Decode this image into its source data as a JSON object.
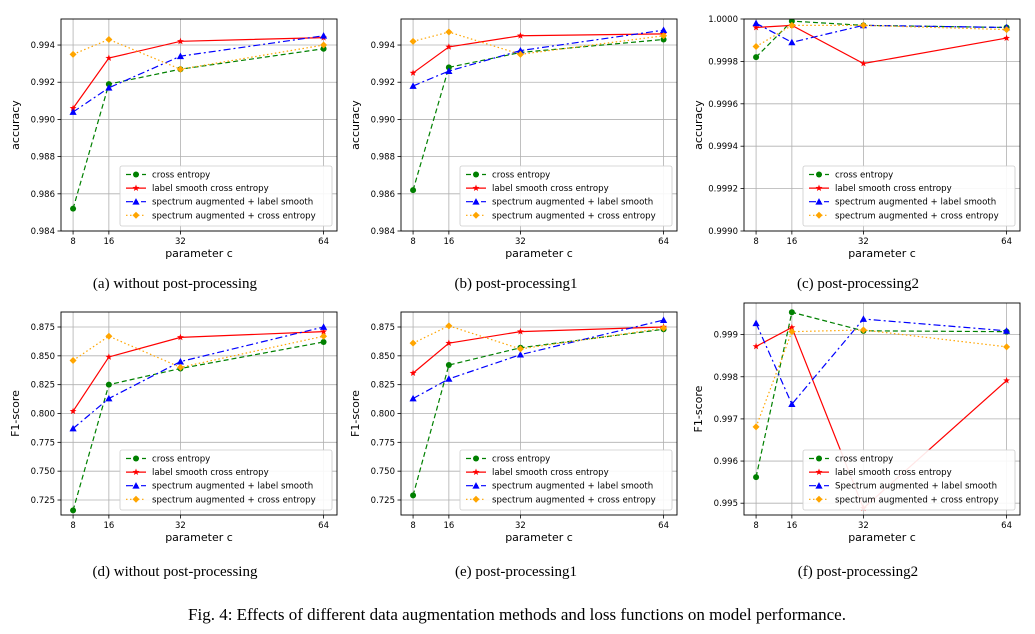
{
  "styles": {
    "cross entropy": {
      "color": "#008000",
      "dash": "5,3",
      "marker": "circle"
    },
    "label smooth cross entropy": {
      "color": "#ff0000",
      "dash": "",
      "marker": "star"
    },
    "spectrum augmented + label smooth": {
      "color": "#0000ff",
      "dash": "7,3,2,3",
      "marker": "triangle"
    },
    "Spectrum augmented + label smooth": {
      "color": "#0000ff",
      "dash": "7,3,2,3",
      "marker": "triangle"
    },
    "spectrum augmented + cross entropy": {
      "color": "#ffa500",
      "dash": "1.5,2.5",
      "marker": "diamond"
    }
  },
  "chart_data": [
    {
      "type": "line",
      "caption": "(a) without post-processing",
      "xlabel": "parameter c",
      "ylabel": "accuracy",
      "x": [
        8,
        16,
        32,
        64
      ],
      "xlim": [
        5.3,
        67
      ],
      "ylim": [
        0.984,
        0.9954
      ],
      "yticks": [
        "0.984",
        "0.986",
        "0.988",
        "0.990",
        "0.992",
        "0.994"
      ],
      "legend": "lower-right",
      "grid": true,
      "series": [
        {
          "name": "cross entropy",
          "values": [
            0.9852,
            0.9919,
            0.9927,
            0.9938
          ]
        },
        {
          "name": "label smooth cross entropy",
          "values": [
            0.9906,
            0.9933,
            0.9942,
            0.9944
          ]
        },
        {
          "name": "spectrum augmented + label smooth",
          "values": [
            0.9904,
            0.9917,
            0.9934,
            0.9945
          ]
        },
        {
          "name": "spectrum augmented + cross entropy",
          "values": [
            0.9935,
            0.9943,
            0.9927,
            0.994
          ]
        }
      ]
    },
    {
      "type": "line",
      "caption": "(b) post-processing1",
      "xlabel": "parameter c",
      "ylabel": "accuracy",
      "x": [
        8,
        16,
        32,
        64
      ],
      "xlim": [
        5.3,
        67
      ],
      "ylim": [
        0.984,
        0.9954
      ],
      "yticks": [
        "0.984",
        "0.986",
        "0.988",
        "0.990",
        "0.992",
        "0.994"
      ],
      "legend": "lower-right",
      "grid": true,
      "series": [
        {
          "name": "cross entropy",
          "values": [
            0.9862,
            0.9928,
            0.9936,
            0.9943
          ]
        },
        {
          "name": "label smooth cross entropy",
          "values": [
            0.9925,
            0.9939,
            0.9945,
            0.9946
          ]
        },
        {
          "name": "spectrum augmented + label smooth",
          "values": [
            0.9918,
            0.9926,
            0.9937,
            0.9948
          ]
        },
        {
          "name": "spectrum augmented + cross entropy",
          "values": [
            0.9942,
            0.9947,
            0.9935,
            0.9945
          ]
        }
      ]
    },
    {
      "type": "line",
      "caption": "(c) post-processing2",
      "xlabel": "parameter c",
      "ylabel": "accuracy",
      "x": [
        8,
        16,
        32,
        64
      ],
      "xlim": [
        5.3,
        67
      ],
      "ylim": [
        0.999,
        1.0
      ],
      "yticks": [
        "0.9990",
        "0.9992",
        "0.9994",
        "0.9996",
        "0.9998",
        "1.0000"
      ],
      "legend": "lower-right",
      "grid": true,
      "series": [
        {
          "name": "cross entropy",
          "values": [
            0.99982,
            0.99999,
            0.99997,
            0.99996
          ]
        },
        {
          "name": "label smooth cross entropy",
          "values": [
            0.99996,
            0.99997,
            0.99979,
            0.99991
          ]
        },
        {
          "name": "spectrum augmented + label smooth",
          "values": [
            0.99998,
            0.99989,
            0.99997,
            0.99996
          ]
        },
        {
          "name": "spectrum augmented + cross entropy",
          "values": [
            0.99987,
            0.99997,
            0.99997,
            0.99995
          ]
        }
      ]
    },
    {
      "type": "line",
      "caption": "(d) without post-processing",
      "xlabel": "parameter c",
      "ylabel": "F1-score",
      "x": [
        8,
        16,
        32,
        64
      ],
      "xlim": [
        5.3,
        67
      ],
      "ylim": [
        0.712,
        0.888
      ],
      "yticks": [
        "0.725",
        "0.750",
        "0.775",
        "0.800",
        "0.825",
        "0.850",
        "0.875"
      ],
      "legend": "lower-right",
      "grid": true,
      "series": [
        {
          "name": "cross entropy",
          "values": [
            0.716,
            0.825,
            0.839,
            0.862
          ]
        },
        {
          "name": "label smooth cross entropy",
          "values": [
            0.802,
            0.849,
            0.866,
            0.871
          ]
        },
        {
          "name": "spectrum augmented + label smooth",
          "values": [
            0.787,
            0.813,
            0.845,
            0.875
          ]
        },
        {
          "name": "spectrum augmented + cross entropy",
          "values": [
            0.846,
            0.867,
            0.84,
            0.867
          ]
        }
      ]
    },
    {
      "type": "line",
      "caption": "(e) post-processing1",
      "xlabel": "parameter c",
      "ylabel": "F1-score",
      "x": [
        8,
        16,
        32,
        64
      ],
      "xlim": [
        5.3,
        67
      ],
      "ylim": [
        0.712,
        0.888
      ],
      "yticks": [
        "0.725",
        "0.750",
        "0.775",
        "0.800",
        "0.825",
        "0.850",
        "0.875"
      ],
      "legend": "lower-right",
      "grid": true,
      "series": [
        {
          "name": "cross entropy",
          "values": [
            0.729,
            0.842,
            0.857,
            0.873
          ]
        },
        {
          "name": "label smooth cross entropy",
          "values": [
            0.835,
            0.861,
            0.871,
            0.875
          ]
        },
        {
          "name": "spectrum augmented + label smooth",
          "values": [
            0.813,
            0.83,
            0.851,
            0.881
          ]
        },
        {
          "name": "spectrum augmented + cross entropy",
          "values": [
            0.861,
            0.876,
            0.856,
            0.874
          ]
        }
      ]
    },
    {
      "type": "line",
      "caption": "(f) post-processing2",
      "xlabel": "parameter c",
      "ylabel": "F1-score",
      "x": [
        8,
        16,
        32,
        64
      ],
      "xlim": [
        5.3,
        67
      ],
      "ylim": [
        0.99472,
        0.99975
      ],
      "yticks": [
        "0.995",
        "0.996",
        "0.997",
        "0.998",
        "0.999"
      ],
      "legend": "lower-right",
      "grid": true,
      "series": [
        {
          "name": "cross entropy",
          "values": [
            0.99562,
            0.99953,
            0.99909,
            0.99907
          ]
        },
        {
          "name": "label smooth cross entropy",
          "values": [
            0.99872,
            0.99917,
            0.99488,
            0.99791
          ]
        },
        {
          "name": "Spectrum augmented + label smooth",
          "values": [
            0.99927,
            0.99735,
            0.99937,
            0.99909
          ]
        },
        {
          "name": "spectrum augmented + cross entropy",
          "values": [
            0.99681,
            0.99907,
            0.99911,
            0.99871
          ]
        }
      ]
    }
  ],
  "figure_caption": "Fig. 4: Effects of different data augmentation methods and loss functions on model performance."
}
